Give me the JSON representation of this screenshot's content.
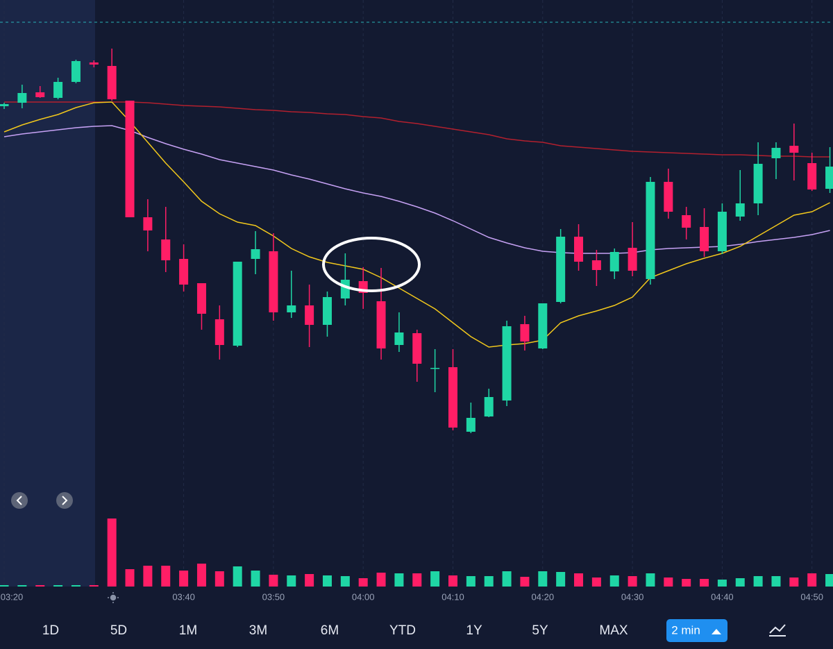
{
  "chart_data": {
    "type": "candlestick",
    "categories": [
      "03:20",
      null,
      null,
      null,
      null,
      null,
      null,
      null,
      null,
      null,
      "03:40",
      null,
      null,
      null,
      null,
      "03:50",
      null,
      null,
      null,
      null,
      "04:00",
      null,
      null,
      null,
      null,
      "04:10",
      null,
      null,
      null,
      null,
      "04:20",
      null,
      null,
      null,
      null,
      "04:30",
      null,
      null,
      null,
      null,
      "04:40",
      null,
      null,
      null,
      null,
      "04:50",
      null
    ],
    "open": [
      847,
      852,
      867,
      859,
      882,
      910,
      905,
      855,
      687,
      655,
      627,
      592,
      540,
      502,
      627,
      638,
      550,
      560,
      532,
      570,
      595,
      566,
      503,
      520,
      469,
      471,
      378,
      400,
      423,
      533,
      498,
      565,
      659,
      625,
      609,
      643,
      598,
      738,
      690,
      673,
      638,
      688,
      707,
      772,
      790,
      765,
      728
    ],
    "high": [
      852,
      878,
      876,
      888,
      914,
      913,
      930,
      855,
      713,
      702,
      648,
      592,
      560,
      622,
      667,
      664,
      610,
      590,
      580,
      635,
      615,
      614,
      550,
      525,
      497,
      497,
      420,
      440,
      538,
      545,
      563,
      670,
      677,
      640,
      642,
      680,
      745,
      757,
      702,
      700,
      707,
      755,
      795,
      795,
      822,
      780,
      788
    ],
    "low": [
      843,
      844,
      859,
      857,
      880,
      903,
      855,
      687,
      638,
      608,
      580,
      525,
      482,
      500,
      605,
      538,
      542,
      500,
      515,
      560,
      555,
      482,
      493,
      450,
      435,
      380,
      376,
      399,
      415,
      495,
      497,
      563,
      610,
      588,
      598,
      602,
      590,
      685,
      655,
      630,
      634,
      682,
      690,
      742,
      740,
      725,
      722
    ],
    "close": [
      850,
      866,
      860,
      882,
      912,
      907,
      857,
      687,
      668,
      625,
      590,
      548,
      503,
      623,
      641,
      550,
      560,
      532,
      572,
      597,
      578,
      498,
      521,
      476,
      470,
      384,
      398,
      428,
      530,
      508,
      563,
      659,
      623,
      611,
      637,
      610,
      738,
      695,
      672,
      638,
      695,
      707,
      764,
      787,
      780,
      727,
      760
    ],
    "up_color": "#1fd6a5",
    "down_color": "#ff1e66",
    "ylim": [
      155,
      1000
    ],
    "price_line": {
      "value": 968,
      "color": "#2ab3b8"
    },
    "moving_averages": [
      {
        "color": "#b3202e",
        "values": [
          853,
          853,
          853,
          853,
          853,
          853,
          853,
          853,
          852,
          850,
          848,
          847,
          846,
          844,
          842,
          841,
          839,
          838,
          836,
          835,
          832,
          830,
          825,
          822,
          818,
          814,
          810,
          806,
          800,
          797,
          795,
          790,
          788,
          786,
          784,
          782,
          781,
          780,
          779,
          778,
          777,
          777,
          776,
          775,
          775,
          774,
          774
        ]
      },
      {
        "color": "#c7a2f5",
        "values": [
          803,
          807,
          810,
          813,
          816,
          818,
          819,
          812,
          802,
          793,
          785,
          778,
          770,
          765,
          760,
          755,
          748,
          742,
          735,
          728,
          722,
          717,
          710,
          702,
          693,
          682,
          670,
          658,
          650,
          643,
          638,
          636,
          635,
          635,
          635,
          636,
          640,
          642,
          643,
          644,
          645,
          648,
          652,
          655,
          658,
          662,
          668
        ]
      },
      {
        "color": "#f2c81c",
        "values": [
          810,
          820,
          828,
          835,
          845,
          852,
          853,
          825,
          795,
          765,
          738,
          710,
          692,
          680,
          675,
          660,
          642,
          630,
          622,
          617,
          612,
          600,
          585,
          570,
          555,
          535,
          515,
          500,
          503,
          505,
          510,
          535,
          545,
          552,
          560,
          572,
          600,
          610,
          620,
          628,
          635,
          645,
          660,
          675,
          690,
          695,
          708
        ]
      }
    ],
    "volume": [
      2,
      2,
      2,
      2,
      2,
      2,
      98,
      25,
      30,
      30,
      23,
      33,
      22,
      29,
      23,
      17,
      16,
      18,
      16,
      15,
      12,
      20,
      19,
      19,
      22,
      16,
      15,
      15,
      22,
      14,
      22,
      21,
      19,
      13,
      16,
      15,
      19,
      13,
      11,
      11,
      10,
      12,
      15,
      15,
      13,
      19,
      18
    ],
    "y2lim": [
      0,
      110
    ]
  },
  "ranges": [
    "1D",
    "5D",
    "1M",
    "3M",
    "6M",
    "YTD",
    "1Y",
    "5Y",
    "MAX"
  ],
  "interval": "2 min"
}
